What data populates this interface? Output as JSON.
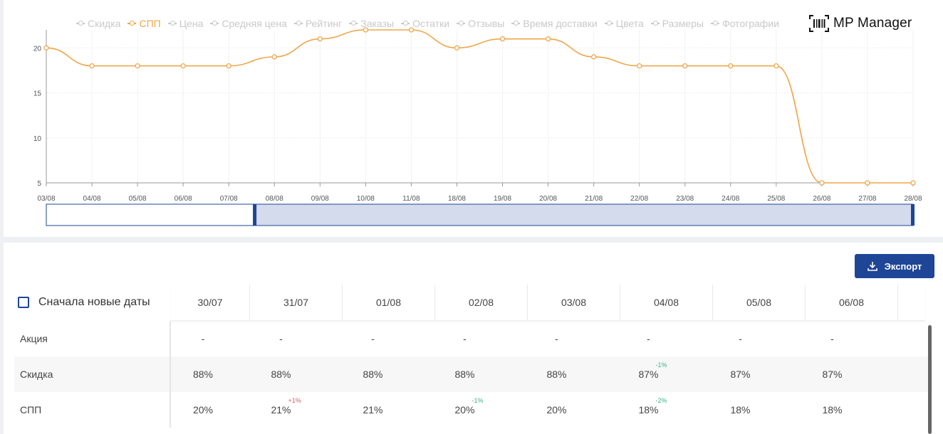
{
  "legend": [
    {
      "label": "Скидка",
      "active": false
    },
    {
      "label": "СПП",
      "active": true
    },
    {
      "label": "Цена",
      "active": false
    },
    {
      "label": "Средняя цена",
      "active": false
    },
    {
      "label": "Рейтинг",
      "active": false
    },
    {
      "label": "Заказы",
      "active": false
    },
    {
      "label": "Остатки",
      "active": false
    },
    {
      "label": "Отзывы",
      "active": false
    },
    {
      "label": "Время доставки",
      "active": false
    },
    {
      "label": "Цвета",
      "active": false
    },
    {
      "label": "Размеры",
      "active": false
    },
    {
      "label": "Фотографии",
      "active": false
    }
  ],
  "brand": {
    "name": "MP Manager"
  },
  "colors": {
    "series": "#f0a64a",
    "accent": "#1e4596",
    "grid": "#ececec",
    "axis": "#999999"
  },
  "chart_data": {
    "type": "line",
    "categories": [
      "03/08",
      "04/08",
      "05/08",
      "06/08",
      "07/08",
      "08/08",
      "09/08",
      "10/08",
      "11/08",
      "18/08",
      "19/08",
      "20/08",
      "21/08",
      "22/08",
      "23/08",
      "24/08",
      "25/08",
      "26/08",
      "27/08",
      "28/08"
    ],
    "series": [
      {
        "name": "СПП",
        "values": [
          20,
          18,
          18,
          18,
          18,
          19,
          21,
          22,
          22,
          20,
          21,
          21,
          19,
          18,
          18,
          18,
          18,
          5,
          5,
          5
        ]
      }
    ],
    "y_ticks": [
      5,
      10,
      15,
      20
    ],
    "ylim": [
      5,
      22
    ],
    "smooth": true,
    "grid": true,
    "range_slider": {
      "start_fraction": 0.24,
      "end_fraction": 1.0
    }
  },
  "export_button": {
    "label": "Экспорт"
  },
  "sort_toggle": {
    "label": "Сначала новые даты",
    "checked": false
  },
  "table": {
    "dates": [
      "30/07",
      "31/07",
      "01/08",
      "02/08",
      "03/08",
      "04/08",
      "05/08",
      "06/08"
    ],
    "rows": [
      {
        "label": "Акция",
        "cells": [
          {
            "v": "-"
          },
          {
            "v": "-"
          },
          {
            "v": "-"
          },
          {
            "v": "-"
          },
          {
            "v": "-"
          },
          {
            "v": "-"
          },
          {
            "v": "-"
          },
          {
            "v": "-"
          }
        ]
      },
      {
        "label": "Скидка",
        "cells": [
          {
            "v": "88%"
          },
          {
            "v": "88%"
          },
          {
            "v": "88%"
          },
          {
            "v": "88%"
          },
          {
            "v": "88%"
          },
          {
            "v": "87%",
            "d": "-1%"
          },
          {
            "v": "87%"
          },
          {
            "v": "87%"
          }
        ]
      },
      {
        "label": "СПП",
        "cells": [
          {
            "v": "20%"
          },
          {
            "v": "21%",
            "d": "+1%"
          },
          {
            "v": "21%"
          },
          {
            "v": "20%",
            "d": "-1%"
          },
          {
            "v": "20%"
          },
          {
            "v": "18%",
            "d": "-2%"
          },
          {
            "v": "18%"
          },
          {
            "v": "18%"
          }
        ]
      }
    ]
  }
}
